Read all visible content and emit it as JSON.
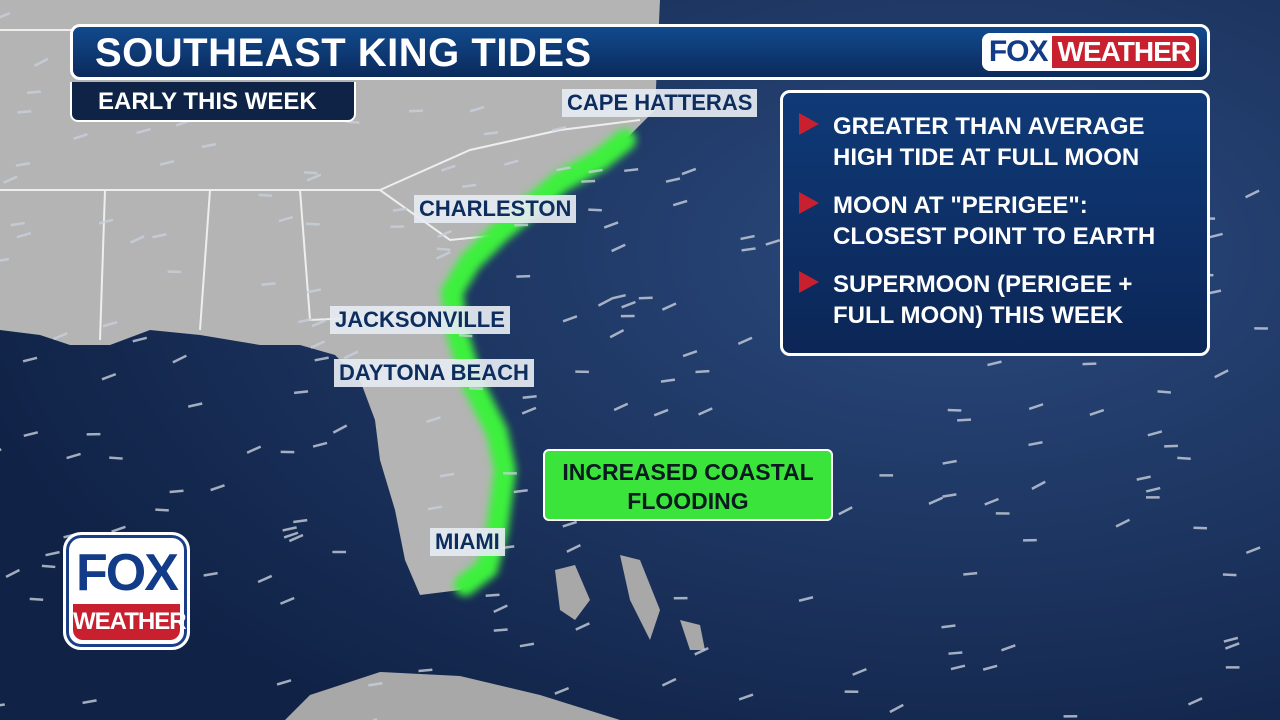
{
  "header": {
    "title": "SOUTHEAST KING TIDES",
    "subtitle": "EARLY THIS WEEK",
    "logo": "FOX WEATHER"
  },
  "logo": {
    "fox": "FOX",
    "weather": "WEATHER"
  },
  "cities": [
    "CAPE HATTERAS",
    "CHARLESTON",
    "JACKSONVILLE",
    "DAYTONA BEACH",
    "MIAMI"
  ],
  "info": {
    "bullets": [
      "GREATER THAN AVERAGE HIGH TIDE AT FULL MOON",
      "MOON AT \"PERIGEE\": CLOSEST POINT TO EARTH",
      "SUPERMOON (PERIGEE + FULL MOON) THIS WEEK"
    ],
    "bullet_icon": "red-triangle-icon"
  },
  "flood_label": "INCREASED COASTAL FLOODING",
  "colors": {
    "ocean": "#14294f",
    "land": "#b4b4b4",
    "flood": "#3be43b",
    "accent": "#c8202f",
    "header": "#0b2a5c"
  }
}
